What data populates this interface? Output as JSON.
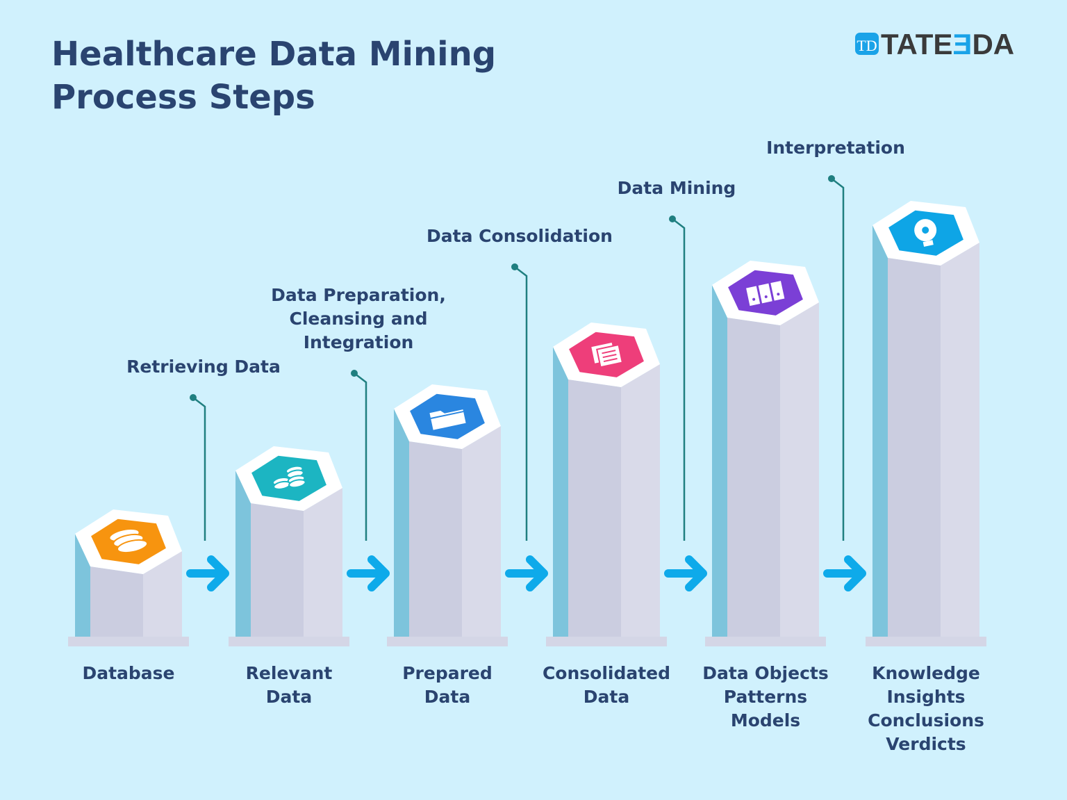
{
  "title": [
    "Healthcare Data Mining",
    "Process Steps"
  ],
  "logo": {
    "mark": "TD",
    "text_a": "TATE",
    "text_b": "Ǝ",
    "text_c": "DA"
  },
  "steps": [
    {
      "output": [
        "Database"
      ],
      "process": [],
      "color": "#f7940f",
      "icon": "database-icon"
    },
    {
      "output": [
        "Relevant",
        "Data"
      ],
      "process": [
        "Retrieving Data"
      ],
      "color": "#1cb5c2",
      "icon": "coins-stack-icon"
    },
    {
      "output": [
        "Prepared",
        "Data"
      ],
      "process": [
        "Data Preparation,",
        "Cleansing and",
        "Integration"
      ],
      "color": "#2a86e0",
      "icon": "folder-icon"
    },
    {
      "output": [
        "Consolidated",
        "Data"
      ],
      "process": [
        "Data Consolidation"
      ],
      "color": "#ee3e7a",
      "icon": "documents-icon"
    },
    {
      "output": [
        "Data Objects",
        "Patterns",
        "Models"
      ],
      "process": [
        "Data Mining"
      ],
      "color": "#7b3fd6",
      "icon": "server-icon"
    },
    {
      "output": [
        "Knowledge",
        "Insights",
        "Conclusions",
        "Verdicts"
      ],
      "process": [
        "Interpretation"
      ],
      "color": "#0ea5e6",
      "icon": "lightbulb-icon"
    }
  ],
  "colors": {
    "background": "#d0f1fd",
    "text": "#2a4470",
    "arrow": "#0eaaea",
    "leader": "#1f7f80",
    "logo_blue": "#1aa3e8"
  }
}
